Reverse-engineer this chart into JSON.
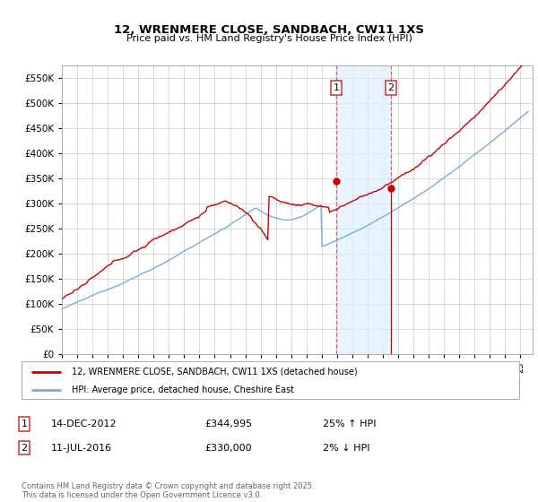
{
  "title": "12, WRENMERE CLOSE, SANDBACH, CW11 1XS",
  "subtitle": "Price paid vs. HM Land Registry's House Price Index (HPI)",
  "ylim": [
    0,
    575000
  ],
  "yticks": [
    0,
    50000,
    100000,
    150000,
    200000,
    250000,
    300000,
    350000,
    400000,
    450000,
    500000,
    550000
  ],
  "xlim_start": 1995.0,
  "xlim_end": 2025.8,
  "background_color": "#ffffff",
  "plot_bg_color": "#ffffff",
  "grid_color": "#cccccc",
  "legend_label_red": "12, WRENMERE CLOSE, SANDBACH, CW11 1XS (detached house)",
  "legend_label_blue": "HPI: Average price, detached house, Cheshire East",
  "red_color": "#cc0000",
  "blue_color": "#7aadd4",
  "annotation1": {
    "label": "1",
    "date_str": "14-DEC-2012",
    "price_str": "£344,995",
    "hpi_str": "25% ↑ HPI",
    "x_year": 2012.96,
    "price": 344995
  },
  "annotation2": {
    "label": "2",
    "date_str": "11-JUL-2016",
    "price_str": "£330,000",
    "hpi_str": "2% ↓ HPI",
    "x_year": 2016.53,
    "price": 330000
  },
  "vline_color": "#cc4444",
  "shade_color": "#ddeeff",
  "footer": "Contains HM Land Registry data © Crown copyright and database right 2025.\nThis data is licensed under the Open Government Licence v3.0."
}
